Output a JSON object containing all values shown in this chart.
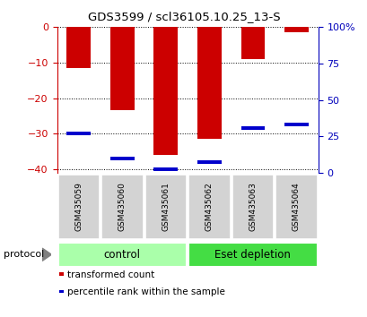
{
  "title": "GDS3599 / scl36105.10.25_13-S",
  "samples": [
    "GSM435059",
    "GSM435060",
    "GSM435061",
    "GSM435062",
    "GSM435063",
    "GSM435064"
  ],
  "red_values": [
    -11.5,
    -23.5,
    -36.0,
    -31.5,
    -9.0,
    -1.5
  ],
  "blue_values": [
    -30.0,
    -37.0,
    -40.0,
    -38.0,
    -28.5,
    -27.5
  ],
  "ylim_left": [
    -41,
    0
  ],
  "ylim_right": [
    0,
    100
  ],
  "yticks_left": [
    0,
    -10,
    -20,
    -30,
    -40
  ],
  "yticks_right": [
    0,
    25,
    50,
    75,
    100
  ],
  "groups": [
    {
      "label": "control",
      "samples": [
        0,
        1,
        2
      ],
      "color": "#AAFFAA"
    },
    {
      "label": "Eset depletion",
      "samples": [
        3,
        4,
        5
      ],
      "color": "#44DD44"
    }
  ],
  "bar_color_red": "#CC0000",
  "bar_color_blue": "#0000CC",
  "left_axis_color": "#CC0000",
  "right_axis_color": "#0000BB",
  "grid_color": "#000000",
  "tick_label_bg": "#D3D3D3",
  "bar_width": 0.55,
  "protocol_label": "protocol",
  "legend_red": "transformed count",
  "legend_blue": "percentile rank within the sample"
}
